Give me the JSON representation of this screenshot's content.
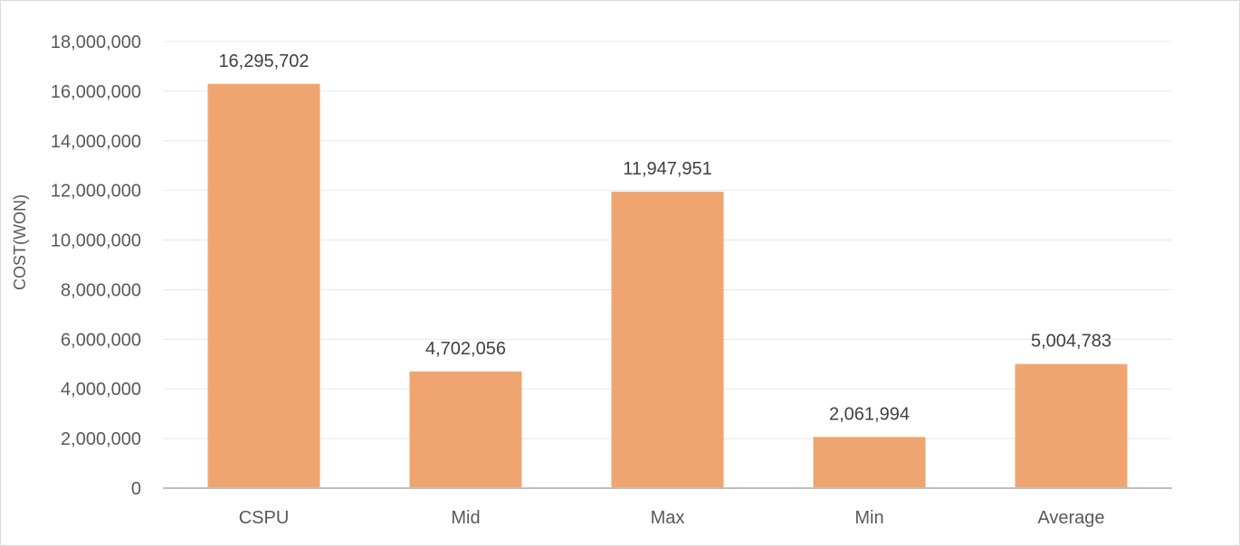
{
  "chart_data": {
    "type": "bar",
    "categories": [
      "CSPU",
      "Mid",
      "Max",
      "Min",
      "Average"
    ],
    "values": [
      16295702,
      4702056,
      11947951,
      2061994,
      5004783
    ],
    "value_labels": [
      "16,295,702",
      "4,702,056",
      "11,947,951",
      "2,061,994",
      "5,004,783"
    ],
    "ylabel": "COST(WON)",
    "xlabel": "",
    "ylim": [
      0,
      18000000
    ],
    "yticks": [
      0,
      2000000,
      4000000,
      6000000,
      8000000,
      10000000,
      12000000,
      14000000,
      16000000,
      18000000
    ],
    "ytick_labels": [
      "0",
      "2,000,000",
      "4,000,000",
      "6,000,000",
      "8,000,000",
      "10,000,000",
      "12,000,000",
      "14,000,000",
      "16,000,000",
      "18,000,000"
    ],
    "grid": true,
    "legend": "none",
    "bar_color": "#F0A570",
    "grid_color": "#E8E8E8",
    "axis_color": "#BFBFBF"
  }
}
